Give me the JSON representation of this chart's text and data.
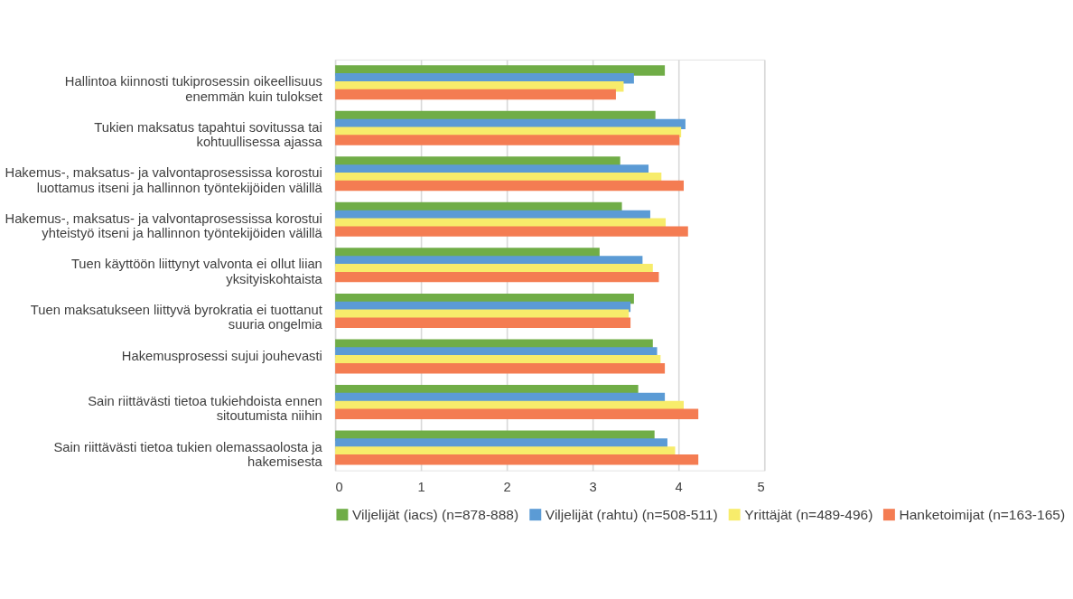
{
  "chart_data": {
    "type": "bar",
    "orientation": "horizontal",
    "categories": [
      "Hallintoa kiinnosti tukiprosessin oikeellisuus enemmän kuin tulokset",
      "Tukien maksatus tapahtui sovitussa tai kohtuullisessa ajassa",
      "Hakemus-, maksatus- ja valvontaprosessissa korostui luottamus itseni ja hallinnon työntekijöiden välillä",
      "Hakemus-, maksatus- ja valvontaprosessissa korostui yhteistyö itseni ja hallinnon työntekijöiden välillä",
      "Tuen käyttöön liittynyt valvonta ei ollut liian yksityiskohtaista",
      "Tuen maksatukseen liittyvä byrokratia ei tuottanut suuria ongelmia",
      "Hakemusprosessi sujui jouhevasti",
      "Sain riittävästi tietoa tukiehdoista ennen sitoutumista niihin",
      "Sain riittävästi tietoa tukien olemassaolosta ja hakemisesta"
    ],
    "series": [
      {
        "name": "Viljelijät (iacs) (n=878-888)",
        "color": "#70ad47",
        "values": [
          3.84,
          3.73,
          3.32,
          3.34,
          3.08,
          3.48,
          3.7,
          3.53,
          3.72
        ]
      },
      {
        "name": "Viljelijät (rahtu) (n=508-511)",
        "color": "#5b9bd5",
        "values": [
          3.48,
          4.08,
          3.65,
          3.67,
          3.58,
          3.44,
          3.75,
          3.84,
          3.87
        ]
      },
      {
        "name": "Yrittäjät (n=489-496)",
        "color": "#f7ec6b",
        "values": [
          3.36,
          4.03,
          3.8,
          3.85,
          3.7,
          3.42,
          3.79,
          4.06,
          3.96
        ]
      },
      {
        "name": "Hanketoimijat (n=163-165)",
        "color": "#f47c52",
        "values": [
          3.27,
          4.01,
          4.06,
          4.11,
          3.77,
          3.44,
          3.84,
          4.23,
          4.23
        ]
      }
    ],
    "xlim": [
      0,
      5
    ],
    "xticks": [
      0,
      1,
      2,
      3,
      4,
      5
    ],
    "grid": "x",
    "legend": "bottom"
  }
}
